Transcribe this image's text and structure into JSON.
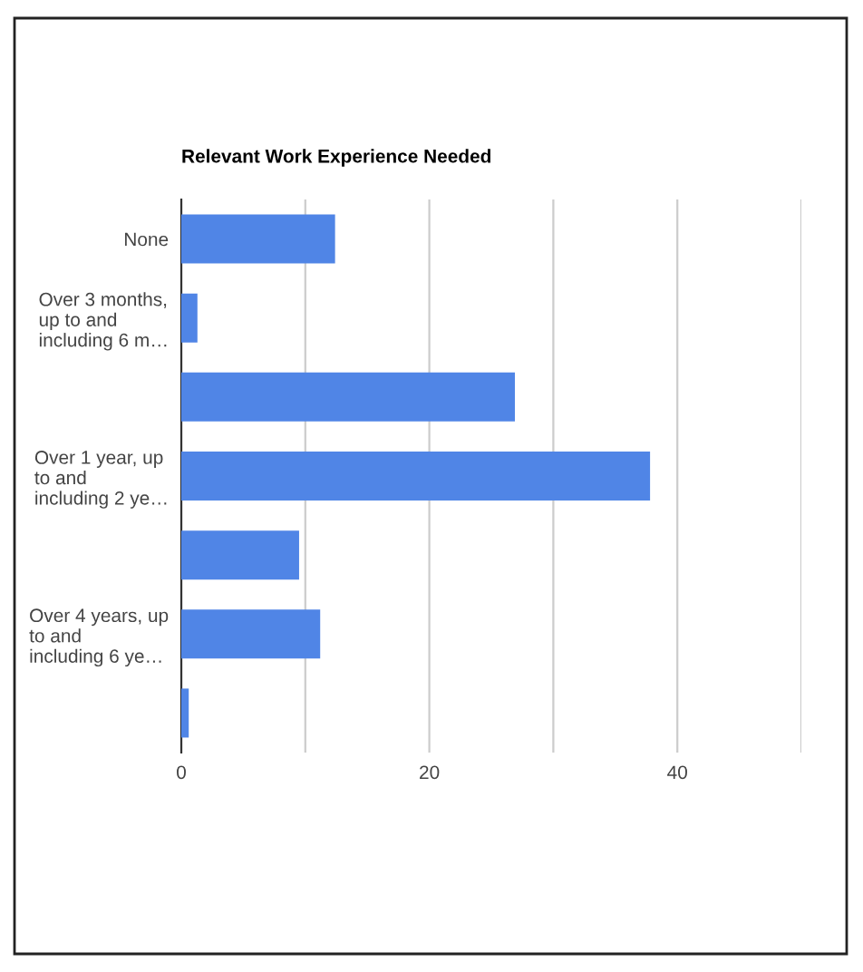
{
  "chart_data": {
    "type": "bar",
    "orientation": "horizontal",
    "title": "Relevant Work Experience Needed",
    "categories": [
      "None",
      "Over 3 months,\nup to and\nincluding 6 m…",
      null,
      "Over 1 year, up\nto and\nincluding 2 ye…",
      null,
      "Over 4 years, up\nto and\nincluding 6 ye…",
      null
    ],
    "values": [
      12.4,
      1.3,
      26.9,
      37.8,
      9.5,
      11.2,
      0.6
    ],
    "color": "#5085e6",
    "xlim": [
      0,
      50
    ],
    "xticks": [
      0,
      {
        "value": 10,
        "label": null
      },
      20,
      {
        "value": 30,
        "label": null
      },
      40,
      {
        "value": 50,
        "label": null
      }
    ],
    "grid": "x"
  }
}
